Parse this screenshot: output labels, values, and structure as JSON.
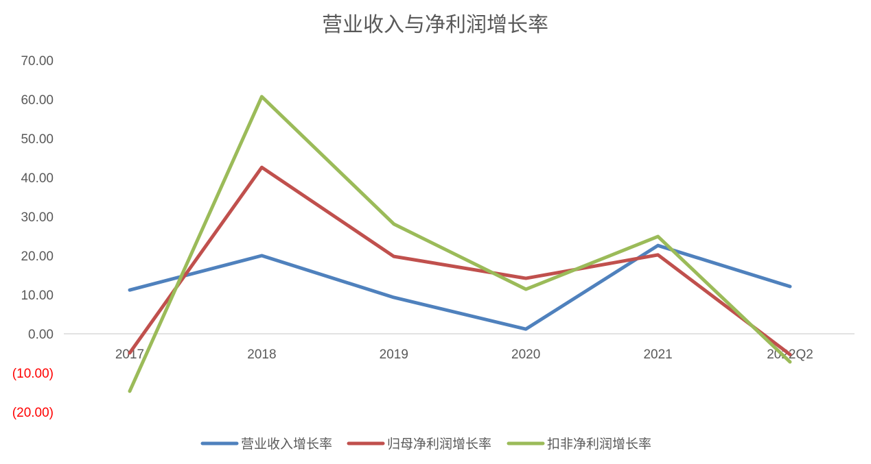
{
  "chart_data": {
    "type": "line",
    "title": "营业收入与净利润增长率",
    "categories": [
      "2017",
      "2018",
      "2019",
      "2020",
      "2021",
      "2022Q2"
    ],
    "ylim": [
      -20,
      70
    ],
    "yticks": [
      70,
      60,
      50,
      40,
      30,
      20,
      10,
      0,
      -10,
      -20
    ],
    "ytick_labels": [
      "70.00",
      "60.00",
      "50.00",
      "40.00",
      "30.00",
      "20.00",
      "10.00",
      "0.00",
      "(10.00)",
      "(20.00)"
    ],
    "negative_label_color": "#ff0000",
    "grid": false,
    "legend_position": "bottom",
    "series": [
      {
        "name": "营业收入增长率",
        "color": "#4f81bd",
        "values": [
          11.2,
          20.0,
          9.3,
          1.2,
          22.6,
          12.1
        ]
      },
      {
        "name": "归母净利润增长率",
        "color": "#c0504d",
        "values": [
          -4.9,
          42.6,
          19.8,
          14.2,
          20.2,
          -5.3
        ]
      },
      {
        "name": "扣非净利润增长率",
        "color": "#9bbb59",
        "values": [
          -14.7,
          60.7,
          28.1,
          11.4,
          24.9,
          -7.2
        ]
      }
    ]
  }
}
